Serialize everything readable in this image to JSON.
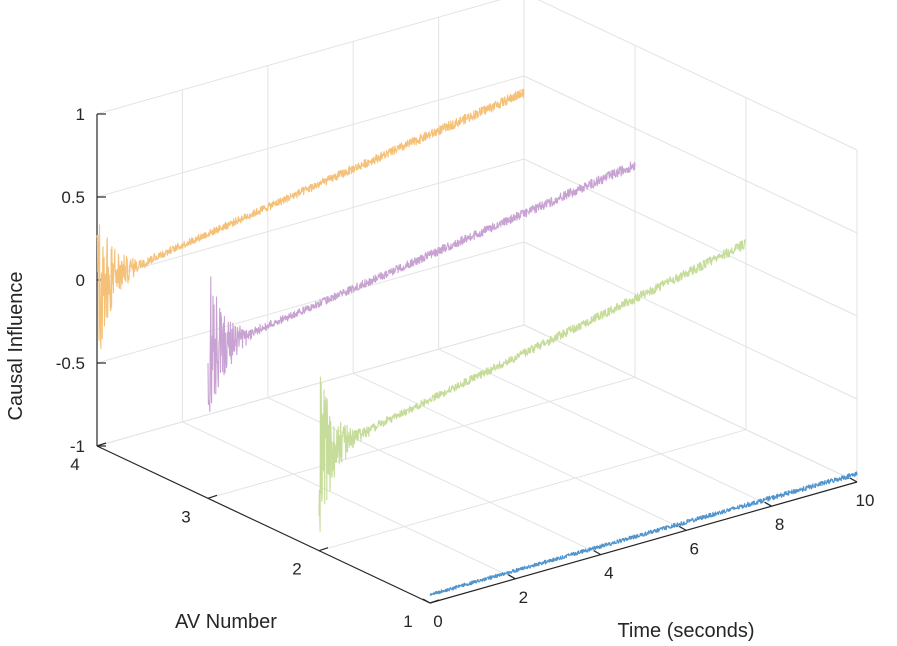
{
  "chart_data": {
    "type": "line",
    "title": "",
    "xlabel": "Time (seconds)",
    "ylabel": "AV Number",
    "zlabel": "Causal Influence",
    "xlim": [
      0,
      10
    ],
    "ylim": [
      1,
      4
    ],
    "zlim": [
      -1,
      1
    ],
    "xticks": [
      "0",
      "2",
      "4",
      "6",
      "8",
      "10"
    ],
    "yticks": [
      "1",
      "2",
      "3",
      "4"
    ],
    "zticks": [
      "-1",
      "-0.5",
      "0",
      "0.5",
      "1"
    ],
    "grid": true,
    "view": "3d",
    "series": [
      {
        "av": 1,
        "color": "#4f94cd",
        "t_start": 0,
        "t_end": 10,
        "z_start": -0.95,
        "z_end": -0.95,
        "transient_amplitude": 0.0,
        "noise": 0.01
      },
      {
        "av": 2,
        "color": "#c6dc9a",
        "t_start": 0,
        "t_end": 10,
        "z_start": -0.42,
        "z_end": 0.12,
        "transient_amplitude": 0.55,
        "noise": 0.02
      },
      {
        "av": 3,
        "color": "#c8a2d2",
        "t_start": 0,
        "t_end": 10,
        "z_start": -0.12,
        "z_end": 0.28,
        "transient_amplitude": 0.55,
        "noise": 0.02
      },
      {
        "av": 4,
        "color": "#f5c178",
        "t_start": 0,
        "t_end": 10,
        "z_start": -0.02,
        "z_end": 0.4,
        "transient_amplitude": 0.55,
        "noise": 0.02
      }
    ]
  }
}
